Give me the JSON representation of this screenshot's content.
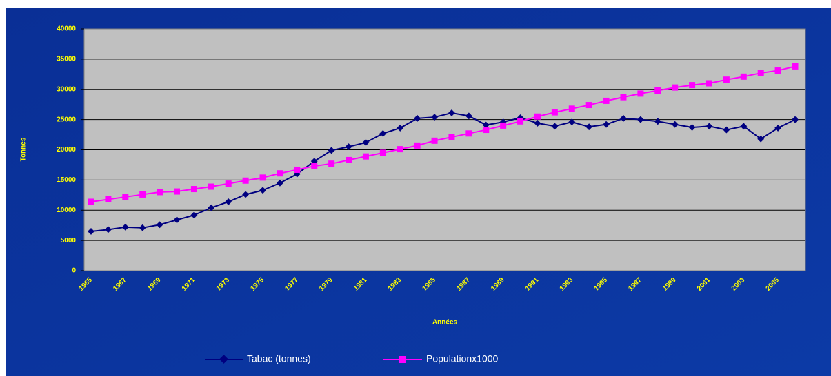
{
  "chart_data": {
    "type": "line",
    "x_label": "Années",
    "y_label": "Tonnes",
    "categories": [
      "1965",
      null,
      "1967",
      null,
      "1969",
      null,
      "1971",
      null,
      "1973",
      null,
      "1975",
      null,
      "1977",
      null,
      "1979",
      null,
      "1981",
      null,
      "1983",
      null,
      "1985",
      null,
      "1987",
      null,
      "1989",
      null,
      "1991",
      null,
      "1993",
      null,
      "1995",
      null,
      "1997",
      null,
      "1999",
      null,
      "2001",
      null,
      "2003",
      null,
      "2005",
      null
    ],
    "series": [
      {
        "name": "Tabac (tonnes)",
        "color": "#000080",
        "marker": "diamond",
        "values": [
          6500,
          6800,
          7200,
          7100,
          7600,
          8400,
          9200,
          10400,
          11400,
          12600,
          13300,
          14500,
          16000,
          18100,
          19900,
          20500,
          21200,
          22700,
          23600,
          25200,
          25400,
          26100,
          25600,
          24100,
          24600,
          25300,
          24400,
          23900,
          24600,
          23800,
          24200,
          25200,
          25000,
          24700,
          24200,
          23700,
          23900,
          23300,
          23900,
          21800,
          23600,
          25000
        ]
      },
      {
        "name": "Populationx1000",
        "color": "#ff00ff",
        "marker": "square",
        "values": [
          11400,
          11800,
          12200,
          12600,
          13000,
          13100,
          13500,
          13900,
          14400,
          14900,
          15400,
          16100,
          16700,
          17300,
          17700,
          18300,
          18900,
          19500,
          20100,
          20700,
          21500,
          22100,
          22700,
          23300,
          24000,
          24700,
          25500,
          26200,
          26800,
          27400,
          28100,
          28700,
          29300,
          29800,
          30300,
          30700,
          31000,
          31600,
          32100,
          32700,
          33100,
          33800
        ]
      }
    ],
    "ylim": [
      0,
      40000
    ],
    "yticks": [
      0,
      5000,
      10000,
      15000,
      20000,
      25000,
      30000,
      35000,
      40000
    ],
    "grid": true,
    "legend": "bottom"
  }
}
